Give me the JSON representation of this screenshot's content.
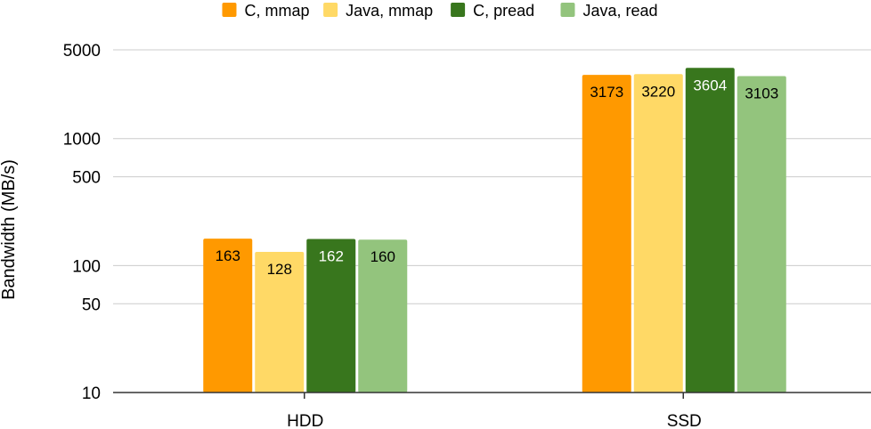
{
  "chart_data": {
    "type": "bar",
    "title": "",
    "xlabel": "",
    "ylabel": "Bandwidth (MB/s)",
    "yscale": "log",
    "ylim": [
      10,
      5000
    ],
    "yticks": [
      10,
      50,
      100,
      500,
      1000,
      5000
    ],
    "ytick_labels": [
      "10",
      "50",
      "100",
      "500",
      "1000",
      "5000"
    ],
    "grid": true,
    "legend_position": "top-center",
    "categories": [
      "HDD",
      "SSD"
    ],
    "series": [
      {
        "name": "C, mmap",
        "color": "#ff9900",
        "label_color": "#000000",
        "values": [
          163,
          3173
        ]
      },
      {
        "name": "Java, mmap",
        "color": "#ffd966",
        "label_color": "#000000",
        "values": [
          128,
          3220
        ]
      },
      {
        "name": "C, pread",
        "color": "#38761d",
        "label_color": "#ffffff",
        "values": [
          162,
          3604
        ]
      },
      {
        "name": "Java, read",
        "color": "#93c47d",
        "label_color": "#000000",
        "values": [
          160,
          3103
        ]
      }
    ]
  }
}
